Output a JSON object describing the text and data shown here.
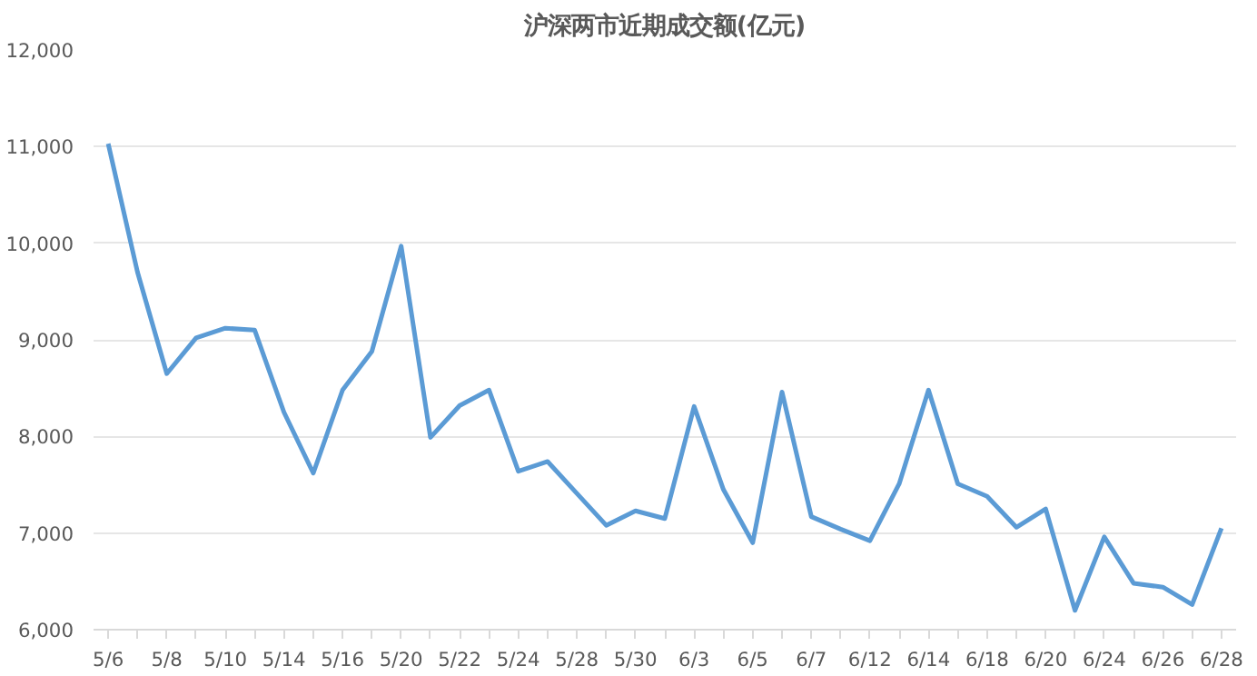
{
  "chart_data": {
    "type": "line",
    "title": "沪深两市近期成交额(亿元)",
    "categories": [
      "5/6",
      null,
      "5/8",
      null,
      "5/10",
      null,
      "5/14",
      null,
      "5/16",
      null,
      "5/20",
      null,
      "5/22",
      null,
      "5/24",
      null,
      "5/28",
      null,
      "5/30",
      null,
      "6/3",
      null,
      "6/5",
      null,
      "6/7",
      null,
      "6/12",
      null,
      "6/14",
      null,
      "6/18",
      null,
      "6/20",
      null,
      "6/24",
      null,
      "6/26",
      null,
      "6/28"
    ],
    "series": [
      {
        "color": "#5b9bd5",
        "values": [
          11030,
          9700,
          8650,
          9020,
          9120,
          9100,
          8250,
          7620,
          8480,
          8880,
          9970,
          7990,
          8320,
          8480,
          7640,
          7740,
          7410,
          7080,
          7230,
          7150,
          8310,
          7450,
          6900,
          8460,
          7170,
          7040,
          6920,
          7510,
          8480,
          7510,
          7380,
          7060,
          7250,
          6200,
          6960,
          6480,
          6440,
          6260,
          7050
        ]
      }
    ],
    "ylim": [
      6000,
      12000
    ],
    "yticks": [
      {
        "value": 6000,
        "label": "6,000"
      },
      {
        "value": 7000,
        "label": "7,000"
      },
      {
        "value": 8000,
        "label": "8,000"
      },
      {
        "value": 9000,
        "label": "9,000"
      },
      {
        "value": 10000,
        "label": "10,000"
      },
      {
        "value": 11000,
        "label": "11,000"
      },
      {
        "value": 12000,
        "label": "12,000"
      }
    ],
    "grid": "y",
    "marker": "none",
    "line_style": "solid"
  }
}
